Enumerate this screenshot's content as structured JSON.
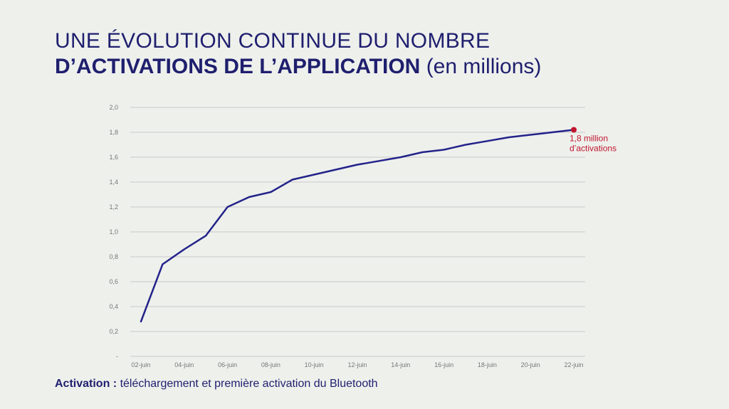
{
  "title": {
    "line1": "UNE ÉVOLUTION CONTINUE DU NOMBRE",
    "line2_bold": "D’ACTIVATIONS DE L’APPLICATION",
    "line2_rest": "(en millions)"
  },
  "footnote": {
    "label": "Activation :",
    "text": "téléchargement et première activation du Bluetooth"
  },
  "colors": {
    "line": "#23238a",
    "highlight": "#c0162f",
    "grid": "#c9c9c9",
    "text": "#1f1f6e"
  },
  "chart_data": {
    "type": "line",
    "title": "UNE ÉVOLUTION CONTINUE DU NOMBRE D’ACTIVATIONS DE L’APPLICATION (en millions)",
    "xlabel": "",
    "ylabel": "",
    "ylim": [
      0,
      2.0
    ],
    "grid": true,
    "y_ticks": [
      "-",
      "0,2",
      "0,4",
      "0,6",
      "0,8",
      "1,0",
      "1,2",
      "1,4",
      "1,6",
      "1,8",
      "2,0"
    ],
    "x_tick_labels": [
      "02-juin",
      "04-juin",
      "06-juin",
      "08-juin",
      "10-juin",
      "12-juin",
      "14-juin",
      "16-juin",
      "18-juin",
      "20-juin",
      "22-juin"
    ],
    "x": [
      "02-juin",
      "03-juin",
      "04-juin",
      "05-juin",
      "06-juin",
      "07-juin",
      "08-juin",
      "09-juin",
      "10-juin",
      "11-juin",
      "12-juin",
      "13-juin",
      "14-juin",
      "15-juin",
      "16-juin",
      "17-juin",
      "18-juin",
      "19-juin",
      "20-juin",
      "21-juin",
      "22-juin"
    ],
    "series": [
      {
        "values": [
          0.28,
          0.74,
          0.86,
          0.97,
          1.2,
          1.28,
          1.32,
          1.42,
          1.46,
          1.5,
          1.54,
          1.57,
          1.6,
          1.64,
          1.66,
          1.7,
          1.73,
          1.76,
          1.78,
          1.8,
          1.82
        ]
      }
    ],
    "annotation": {
      "x": "22-juin",
      "lines": [
        "1,8 million",
        "d’activations"
      ]
    }
  }
}
